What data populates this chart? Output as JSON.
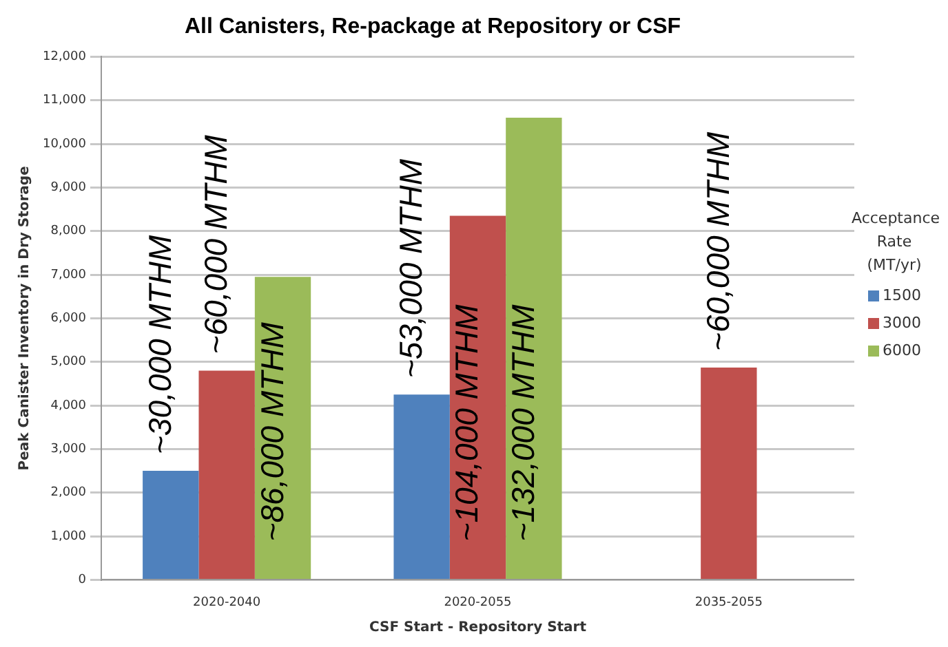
{
  "chart_data": {
    "type": "bar",
    "title": "All Canisters, Re-package at Repository or CSF",
    "xlabel": "CSF Start - Repository Start",
    "ylabel": "Peak Canister Inventory in Dry Storage",
    "legend_title": "Acceptance Rate (MT/yr)",
    "categories": [
      "2020-2040",
      "2020-2055",
      "2035-2055"
    ],
    "series": [
      {
        "name": "1500",
        "color": "#4f81bd",
        "values": [
          2500,
          4250,
          null
        ]
      },
      {
        "name": "3000",
        "color": "#c0504d",
        "values": [
          4800,
          8350,
          4870
        ]
      },
      {
        "name": "6000",
        "color": "#9bbb59",
        "values": [
          6950,
          10600,
          null
        ]
      }
    ],
    "ylim": [
      0,
      12000
    ],
    "yticks": [
      {
        "value": 0,
        "label": "0"
      },
      {
        "value": 1000,
        "label": "1,000"
      },
      {
        "value": 2000,
        "label": "2,000"
      },
      {
        "value": 3000,
        "label": "3,000"
      },
      {
        "value": 4000,
        "label": "4,000"
      },
      {
        "value": 5000,
        "label": "5,000"
      },
      {
        "value": 6000,
        "label": "6,000"
      },
      {
        "value": 7000,
        "label": "7,000"
      },
      {
        "value": 8000,
        "label": "8,000"
      },
      {
        "value": 9000,
        "label": "9,000"
      },
      {
        "value": 10000,
        "label": "10,000"
      },
      {
        "value": 11000,
        "label": "11,000"
      },
      {
        "value": 12000,
        "label": "12,000"
      }
    ],
    "grid": "y",
    "legend": "right",
    "annotations": [
      "~30,000 MTHM",
      "~60,000 MTHM",
      "~86,000 MTHM",
      "~53,000 MTHM",
      "~104,000 MTHM",
      "~132,000 MTHM",
      "~60,000 MTHM"
    ]
  }
}
